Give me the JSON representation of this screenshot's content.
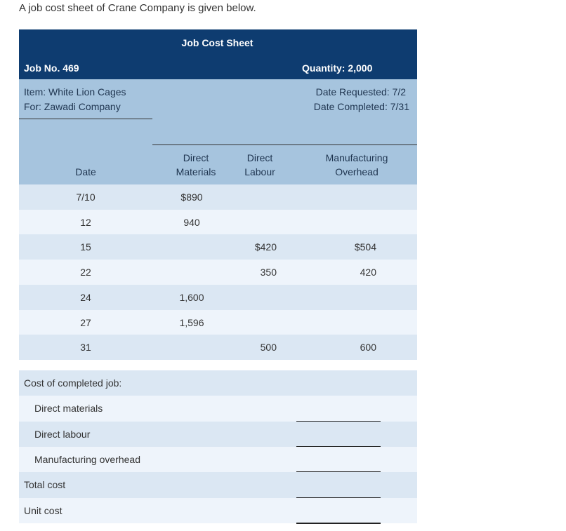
{
  "intro": "A job cost sheet of Crane Company is given below.",
  "sheet": {
    "title": "Job Cost Sheet",
    "job_no": "Job No. 469",
    "quantity": "Quantity: 2,000",
    "item": "Item: White Lion Cages",
    "for": "For: Zawadi Company",
    "date_requested": "Date Requested: 7/2",
    "date_completed": "Date Completed: 7/31",
    "columns": [
      [
        "Date"
      ],
      [
        "Direct",
        "Materials"
      ],
      [
        "Direct",
        "Labour"
      ],
      [
        "Manufacturing",
        "Overhead"
      ]
    ],
    "rows": [
      [
        "7/10",
        "$890",
        null,
        null
      ],
      [
        "12",
        "940",
        null,
        null
      ],
      [
        "15",
        null,
        "$420",
        "$504"
      ],
      [
        "22",
        null,
        "350",
        "420"
      ],
      [
        "24",
        "1,600",
        null,
        null
      ],
      [
        "27",
        "1,596",
        null,
        null
      ],
      [
        "31",
        null,
        "500",
        "600"
      ]
    ],
    "summary_heading": "Cost of completed job:",
    "summary_items": [
      "Direct materials",
      "Direct labour",
      "Manufacturing overhead"
    ],
    "totals": [
      "Total cost",
      "Unit cost"
    ]
  }
}
